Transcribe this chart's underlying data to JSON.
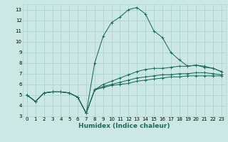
{
  "title": "",
  "xlabel": "Humidex (Indice chaleur)",
  "ylabel": "",
  "bg_color": "#cce8e4",
  "grid_color": "#aed4cf",
  "line_color": "#1a6b5c",
  "xlim": [
    -0.5,
    23.5
  ],
  "ylim": [
    3,
    13.5
  ],
  "yticks": [
    3,
    4,
    5,
    6,
    7,
    8,
    9,
    10,
    11,
    12,
    13
  ],
  "xticks": [
    0,
    1,
    2,
    3,
    4,
    5,
    6,
    7,
    8,
    9,
    10,
    11,
    12,
    13,
    14,
    15,
    16,
    17,
    18,
    19,
    20,
    21,
    22,
    23
  ],
  "series": [
    [
      5.0,
      4.4,
      5.2,
      5.3,
      5.3,
      5.2,
      4.8,
      3.3,
      8.0,
      10.5,
      11.8,
      12.3,
      13.0,
      13.2,
      12.6,
      11.0,
      10.4,
      9.0,
      8.3,
      7.7,
      7.8,
      7.6,
      7.5,
      7.2
    ],
    [
      5.0,
      4.4,
      5.2,
      5.3,
      5.3,
      5.2,
      4.8,
      3.3,
      5.5,
      6.0,
      6.3,
      6.6,
      6.9,
      7.2,
      7.4,
      7.5,
      7.5,
      7.6,
      7.7,
      7.7,
      7.8,
      7.7,
      7.5,
      7.2
    ],
    [
      5.0,
      4.4,
      5.2,
      5.3,
      5.3,
      5.2,
      4.8,
      3.3,
      5.5,
      5.8,
      6.0,
      6.2,
      6.4,
      6.6,
      6.7,
      6.8,
      6.9,
      6.9,
      7.0,
      7.0,
      7.1,
      7.1,
      7.0,
      6.9
    ],
    [
      5.0,
      4.4,
      5.2,
      5.3,
      5.3,
      5.2,
      4.8,
      3.3,
      5.5,
      5.7,
      5.9,
      6.0,
      6.1,
      6.3,
      6.4,
      6.5,
      6.6,
      6.7,
      6.7,
      6.8,
      6.8,
      6.8,
      6.8,
      6.8
    ]
  ],
  "xlabel_fontsize": 6.5,
  "tick_fontsize": 5.0,
  "linewidth": 0.75,
  "markersize": 2.5,
  "markeredgewidth": 0.7
}
